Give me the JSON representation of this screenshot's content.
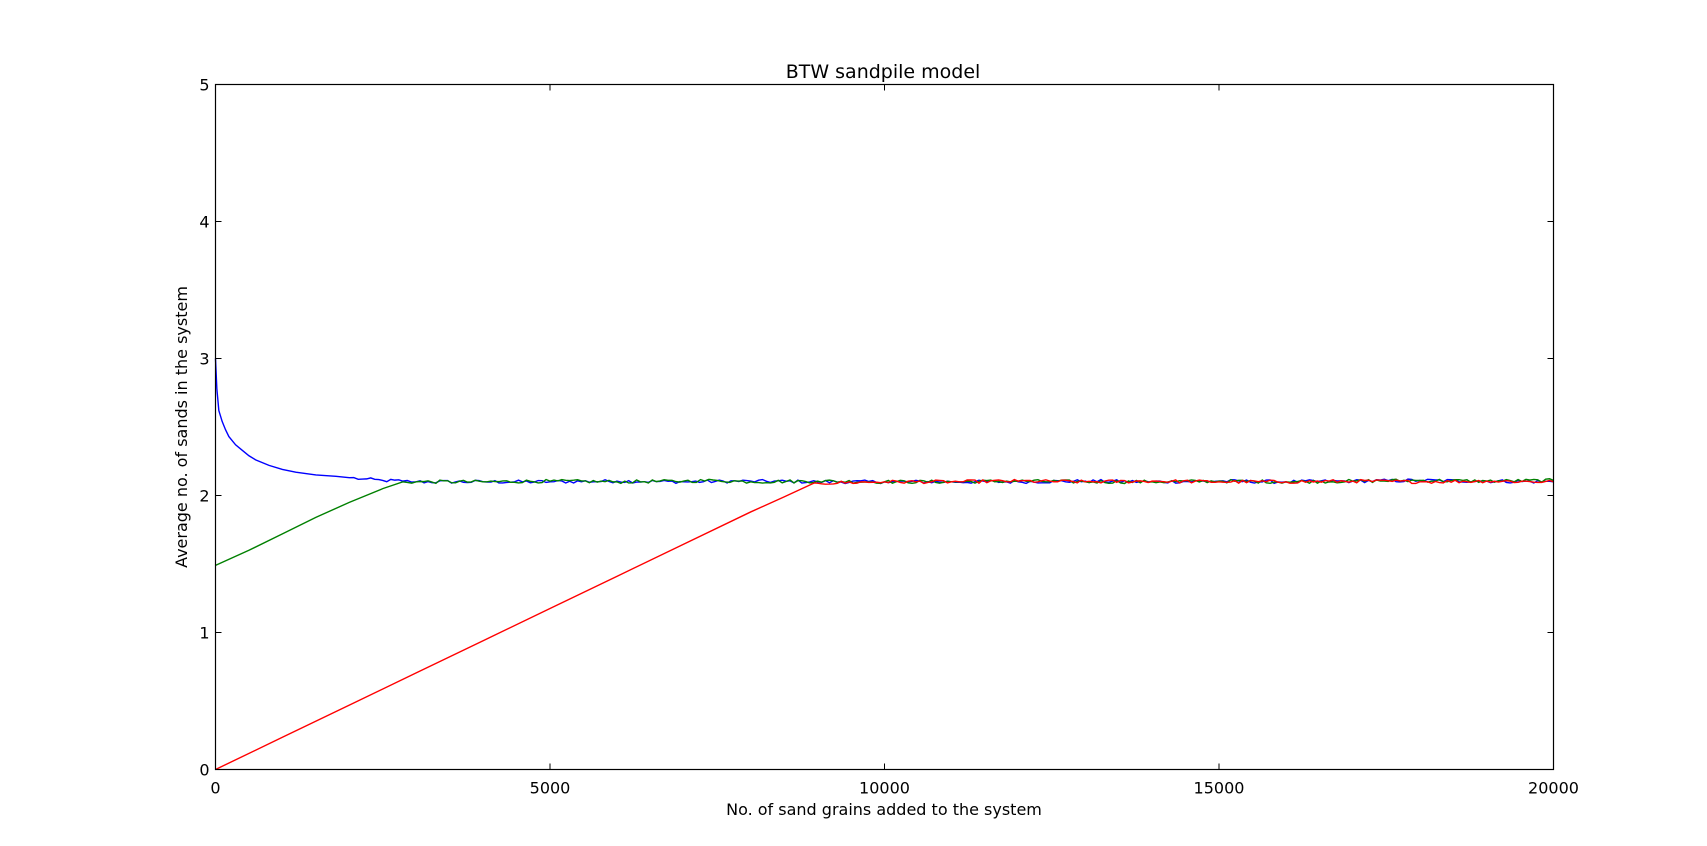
{
  "chart_data": {
    "type": "line",
    "title": "BTW sandpile model",
    "xlabel": "No. of sand grains added to the system",
    "ylabel": "Average no. of sands in the system",
    "xlim": [
      0,
      20000
    ],
    "ylim": [
      0,
      5
    ],
    "xticks": [
      "0",
      "5000",
      "10000",
      "15000",
      "20000"
    ],
    "yticks": [
      "0",
      "1",
      "2",
      "3",
      "4",
      "5"
    ],
    "grid": false,
    "legend": "none",
    "series": [
      {
        "color": "#0000ff",
        "x": [
          0,
          20,
          50,
          100,
          150,
          200,
          300,
          400,
          500,
          600,
          800,
          1000,
          1200,
          1500,
          1800,
          2000,
          2200,
          2500,
          2800,
          3000,
          4000,
          5000,
          6000,
          7000,
          8000,
          9000,
          10000,
          11000,
          12000,
          13000,
          14000,
          15000,
          16000,
          17000,
          18000,
          19000,
          20000
        ],
        "y": [
          3.0,
          2.78,
          2.62,
          2.54,
          2.48,
          2.43,
          2.37,
          2.33,
          2.29,
          2.26,
          2.22,
          2.19,
          2.17,
          2.15,
          2.14,
          2.13,
          2.12,
          2.11,
          2.105,
          2.1,
          2.1,
          2.1,
          2.105,
          2.1,
          2.105,
          2.1,
          2.1,
          2.1,
          2.1,
          2.105,
          2.1,
          2.105,
          2.1,
          2.105,
          2.11,
          2.105,
          2.1
        ]
      },
      {
        "color": "#008000",
        "x": [
          0,
          500,
          1000,
          1500,
          2000,
          2500,
          2800,
          3000,
          4000,
          5000,
          6000,
          7000,
          7500,
          8000,
          9000,
          10000,
          11000,
          12000,
          13000,
          14000,
          15000,
          16000,
          17000,
          18000,
          19000,
          20000
        ],
        "y": [
          1.49,
          1.6,
          1.72,
          1.84,
          1.95,
          2.05,
          2.1,
          2.1,
          2.1,
          2.105,
          2.1,
          2.105,
          2.11,
          2.1,
          2.105,
          2.1,
          2.1,
          2.105,
          2.1,
          2.1,
          2.105,
          2.1,
          2.105,
          2.11,
          2.105,
          2.11
        ]
      },
      {
        "color": "#ff0000",
        "x": [
          0,
          1000,
          2000,
          3000,
          4000,
          5000,
          6000,
          7000,
          8000,
          8500,
          8900,
          9000,
          10000,
          11000,
          12000,
          13000,
          14000,
          15000,
          16000,
          17000,
          18000,
          19000,
          20000
        ],
        "y": [
          0.0,
          0.235,
          0.47,
          0.705,
          0.94,
          1.175,
          1.41,
          1.645,
          1.88,
          1.99,
          2.08,
          2.09,
          2.1,
          2.1,
          2.105,
          2.1,
          2.105,
          2.1,
          2.1,
          2.105,
          2.1,
          2.105,
          2.1
        ]
      }
    ]
  }
}
